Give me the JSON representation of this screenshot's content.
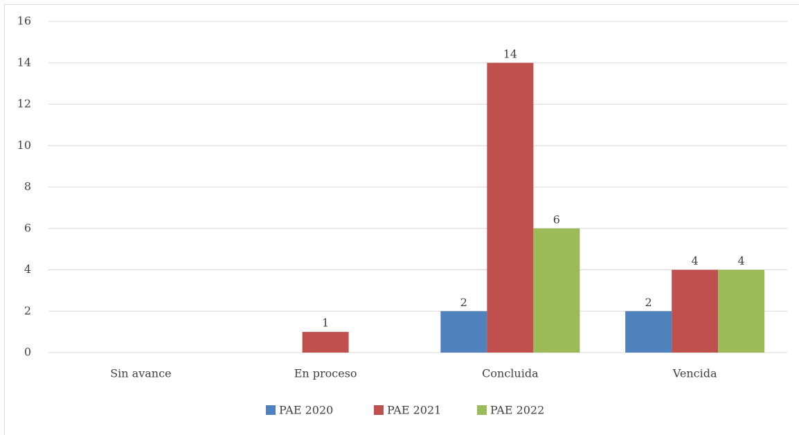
{
  "chart_data": {
    "type": "bar",
    "categories": [
      "Sin avance",
      "En proceso",
      "Concluida",
      "Vencida"
    ],
    "series": [
      {
        "name": "PAE 2020",
        "color": "#4f81bd",
        "values": [
          0,
          0,
          2,
          2
        ]
      },
      {
        "name": "PAE 2021",
        "color": "#c0504d",
        "values": [
          0,
          1,
          14,
          4
        ]
      },
      {
        "name": "PAE 2022",
        "color": "#9bbb59",
        "values": [
          0,
          0,
          6,
          4
        ]
      }
    ],
    "ylim": [
      0,
      16
    ],
    "yticks": [
      0,
      2,
      4,
      6,
      8,
      10,
      12,
      14,
      16
    ],
    "grid": true,
    "legend": "bottom"
  }
}
